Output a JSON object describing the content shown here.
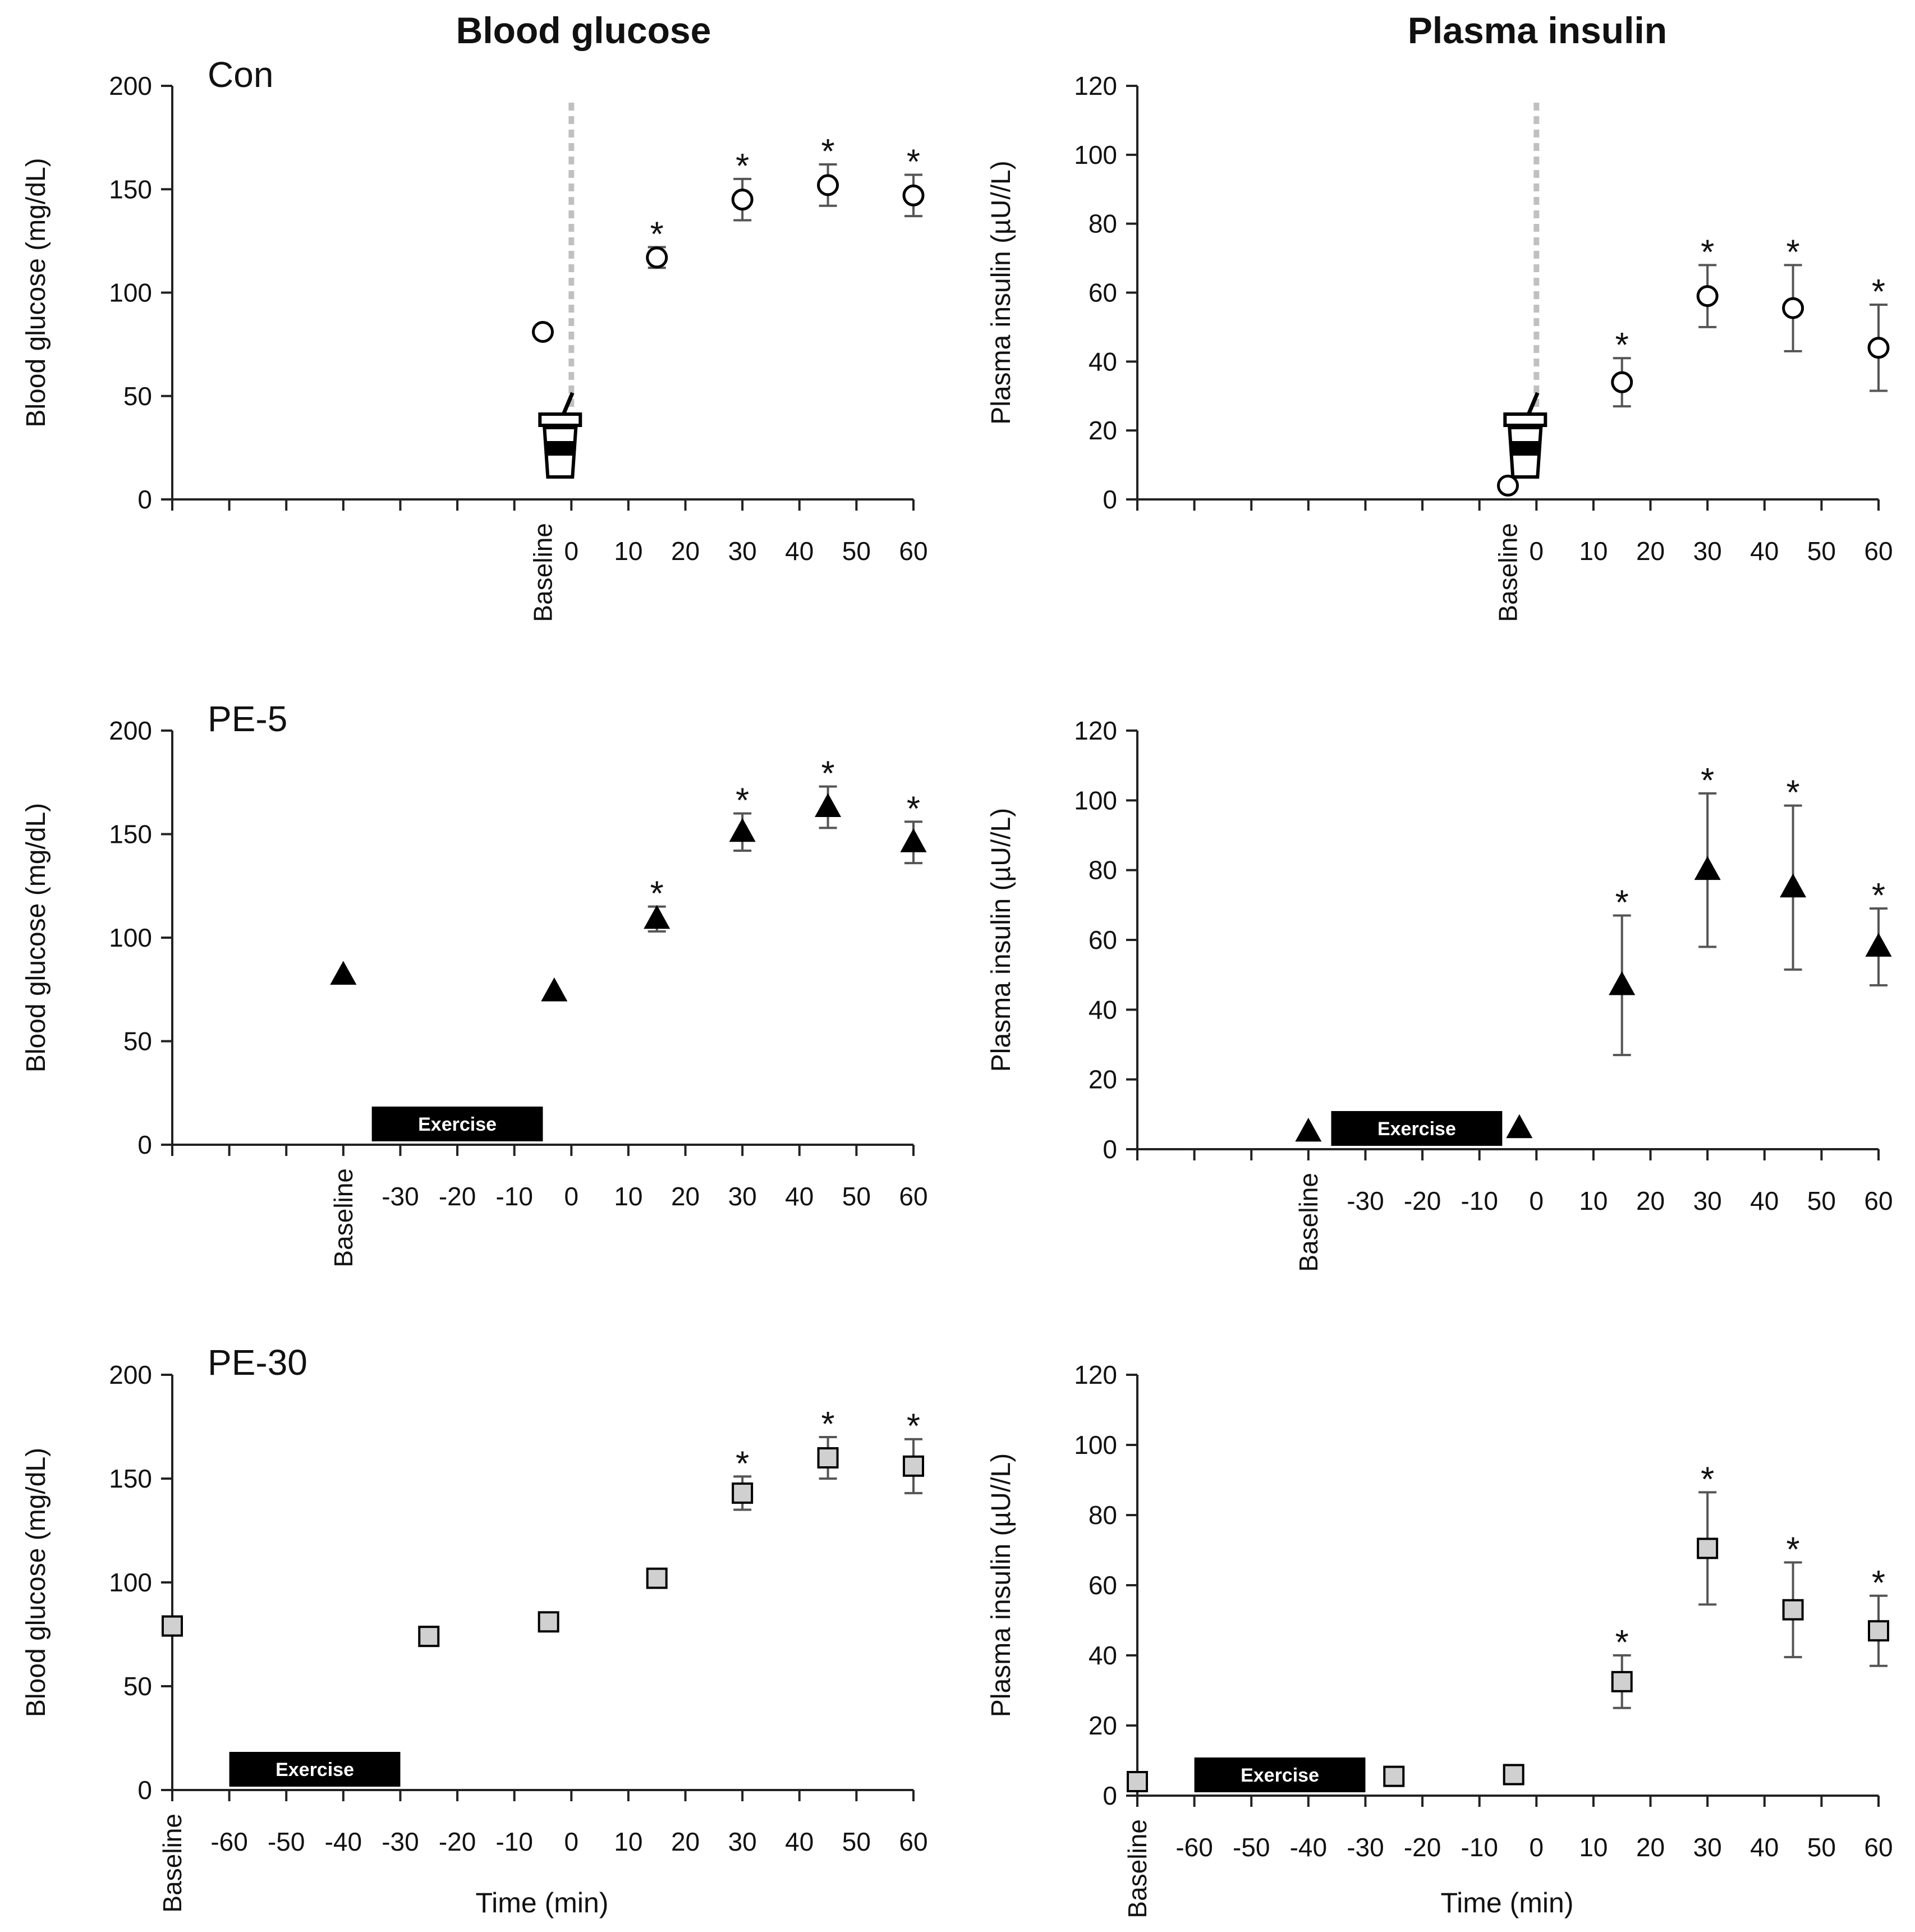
{
  "column_titles": {
    "glucose": "Blood glucose",
    "insulin": "Plasma insulin"
  },
  "ylabels": {
    "glucose": "Blood glucose (mg/dL)",
    "insulin": "Plasma insulin (µU//L)"
  },
  "xlabel": "Time (min)",
  "baseline_label": "Baseline",
  "exercise_label": "Exercise",
  "significance_marker": "*",
  "colors": {
    "axis": "#222222",
    "marker_edge": "#000000",
    "con_fill": "#ffffff",
    "pe5_fill": "#000000",
    "pe30_fill": "#d0d0d0",
    "drink_line": "#c0c0c0",
    "errorbar": "#555555"
  },
  "chart_data": [
    {
      "id": "con-glucose",
      "type": "scatter",
      "panel_label": "Con",
      "group": "Con",
      "marker": "circle",
      "ylim": [
        0,
        200
      ],
      "yticks": [
        0,
        50,
        100,
        150,
        200
      ],
      "xlim": [
        -70,
        60
      ],
      "xtick_values": [
        0,
        10,
        20,
        30,
        40,
        50,
        60
      ],
      "tick_labels": [
        "0",
        "10",
        "20",
        "30",
        "40",
        "50",
        "60"
      ],
      "baseline_x": -5,
      "drink_icon_x": 0,
      "drink_line_x": 0,
      "exercise": null,
      "points": [
        {
          "x": -5,
          "y": 81,
          "err": 0,
          "sig": false
        },
        {
          "x": 15,
          "y": 117,
          "err": 5,
          "sig": true
        },
        {
          "x": 30,
          "y": 145,
          "err": 10,
          "sig": true
        },
        {
          "x": 45,
          "y": 152,
          "err": 10,
          "sig": true
        },
        {
          "x": 60,
          "y": 147,
          "err": 10,
          "sig": true
        }
      ]
    },
    {
      "id": "con-insulin",
      "type": "scatter",
      "group": "Con",
      "marker": "circle",
      "ylim": [
        0,
        120
      ],
      "yticks": [
        0,
        20,
        40,
        60,
        80,
        100,
        120
      ],
      "xlim": [
        -70,
        60
      ],
      "xtick_values": [
        0,
        10,
        20,
        30,
        40,
        50,
        60
      ],
      "tick_labels": [
        "0",
        "10",
        "20",
        "30",
        "40",
        "50",
        "60"
      ],
      "baseline_x": -5,
      "drink_icon_x": 0,
      "drink_line_x": 0,
      "exercise": null,
      "points": [
        {
          "x": -5,
          "y": 4,
          "err": 0,
          "sig": false
        },
        {
          "x": 15,
          "y": 34,
          "err": 7,
          "sig": true
        },
        {
          "x": 30,
          "y": 59,
          "err": 9,
          "sig": true
        },
        {
          "x": 45,
          "y": 55.5,
          "err": 12.5,
          "sig": true
        },
        {
          "x": 60,
          "y": 44,
          "err": 12.5,
          "sig": true
        }
      ]
    },
    {
      "id": "pe5-glucose",
      "type": "scatter",
      "panel_label": "PE-5",
      "group": "PE-5",
      "marker": "triangle",
      "ylim": [
        0,
        200
      ],
      "yticks": [
        0,
        50,
        100,
        150,
        200
      ],
      "xlim": [
        -70,
        60
      ],
      "xtick_values": [
        -30,
        -20,
        -10,
        0,
        10,
        20,
        30,
        40,
        50,
        60
      ],
      "tick_labels": [
        "-30",
        "-20",
        "-10",
        "0",
        "10",
        "20",
        "30",
        "40",
        "50",
        "60"
      ],
      "baseline_x": -40,
      "drink_icon_x": null,
      "drink_line_x": null,
      "exercise": [
        -35,
        -5
      ],
      "points": [
        {
          "x": -40,
          "y": 82,
          "err": 0,
          "sig": false
        },
        {
          "x": -3,
          "y": 74,
          "err": 0,
          "sig": false
        },
        {
          "x": 15,
          "y": 109,
          "err": 6,
          "sig": true
        },
        {
          "x": 30,
          "y": 151,
          "err": 9,
          "sig": true
        },
        {
          "x": 45,
          "y": 163,
          "err": 10,
          "sig": true
        },
        {
          "x": 60,
          "y": 146,
          "err": 10,
          "sig": true
        }
      ]
    },
    {
      "id": "pe5-insulin",
      "type": "scatter",
      "group": "PE-5",
      "marker": "triangle",
      "ylim": [
        0,
        120
      ],
      "yticks": [
        0,
        20,
        40,
        60,
        80,
        100,
        120
      ],
      "xlim": [
        -70,
        60
      ],
      "xtick_values": [
        -30,
        -20,
        -10,
        0,
        10,
        20,
        30,
        40,
        50,
        60
      ],
      "tick_labels": [
        "-30",
        "-20",
        "-10",
        "0",
        "10",
        "20",
        "30",
        "40",
        "50",
        "60"
      ],
      "baseline_x": -40,
      "drink_icon_x": null,
      "drink_line_x": null,
      "exercise": [
        -36,
        -6
      ],
      "points": [
        {
          "x": -40,
          "y": 5,
          "err": 0,
          "sig": false
        },
        {
          "x": -3,
          "y": 6,
          "err": 0,
          "sig": false
        },
        {
          "x": 15,
          "y": 47,
          "err": 20,
          "sig": true
        },
        {
          "x": 30,
          "y": 80,
          "err": 22,
          "sig": true
        },
        {
          "x": 45,
          "y": 75,
          "err": 23.5,
          "sig": true
        },
        {
          "x": 60,
          "y": 58,
          "err": 11,
          "sig": true
        }
      ]
    },
    {
      "id": "pe30-glucose",
      "type": "scatter",
      "panel_label": "PE-30",
      "group": "PE-30",
      "marker": "square",
      "ylim": [
        0,
        200
      ],
      "yticks": [
        0,
        50,
        100,
        150,
        200
      ],
      "xlim": [
        -70,
        60
      ],
      "xtick_values": [
        -60,
        -50,
        -40,
        -30,
        -20,
        -10,
        0,
        10,
        20,
        30,
        40,
        50,
        60
      ],
      "tick_labels": [
        "-60",
        "-50",
        "-40",
        "-30",
        "-20",
        "-10",
        "0",
        "10",
        "20",
        "30",
        "40",
        "50",
        "60"
      ],
      "baseline_x": -70,
      "drink_icon_x": null,
      "drink_line_x": null,
      "exercise": [
        -60,
        -30
      ],
      "points": [
        {
          "x": -70,
          "y": 79,
          "err": 0,
          "sig": false
        },
        {
          "x": -25,
          "y": 74,
          "err": 0,
          "sig": false
        },
        {
          "x": -4,
          "y": 81,
          "err": 0,
          "sig": false
        },
        {
          "x": 15,
          "y": 102,
          "err": 0,
          "sig": false
        },
        {
          "x": 30,
          "y": 143,
          "err": 8,
          "sig": true
        },
        {
          "x": 45,
          "y": 160,
          "err": 10,
          "sig": true
        },
        {
          "x": 60,
          "y": 156,
          "err": 13,
          "sig": true
        }
      ]
    },
    {
      "id": "pe30-insulin",
      "type": "scatter",
      "group": "PE-30",
      "marker": "square",
      "ylim": [
        0,
        120
      ],
      "yticks": [
        0,
        20,
        40,
        60,
        80,
        100,
        120
      ],
      "xlim": [
        -70,
        60
      ],
      "xtick_values": [
        -60,
        -50,
        -40,
        -30,
        -20,
        -10,
        0,
        10,
        20,
        30,
        40,
        50,
        60
      ],
      "tick_labels": [
        "-60",
        "-50",
        "-40",
        "-30",
        "-20",
        "-10",
        "0",
        "10",
        "20",
        "30",
        "40",
        "50",
        "60"
      ],
      "baseline_x": -70,
      "drink_icon_x": null,
      "drink_line_x": null,
      "exercise": [
        -60,
        -30
      ],
      "points": [
        {
          "x": -70,
          "y": 4,
          "err": 0,
          "sig": false
        },
        {
          "x": -25,
          "y": 5.5,
          "err": 0,
          "sig": false
        },
        {
          "x": -4,
          "y": 6,
          "err": 0,
          "sig": false
        },
        {
          "x": 15,
          "y": 32.5,
          "err": 7.5,
          "sig": true
        },
        {
          "x": 30,
          "y": 70.5,
          "err": 16,
          "sig": true
        },
        {
          "x": 45,
          "y": 53,
          "err": 13.5,
          "sig": true
        },
        {
          "x": 60,
          "y": 47,
          "err": 10,
          "sig": true
        }
      ]
    }
  ]
}
